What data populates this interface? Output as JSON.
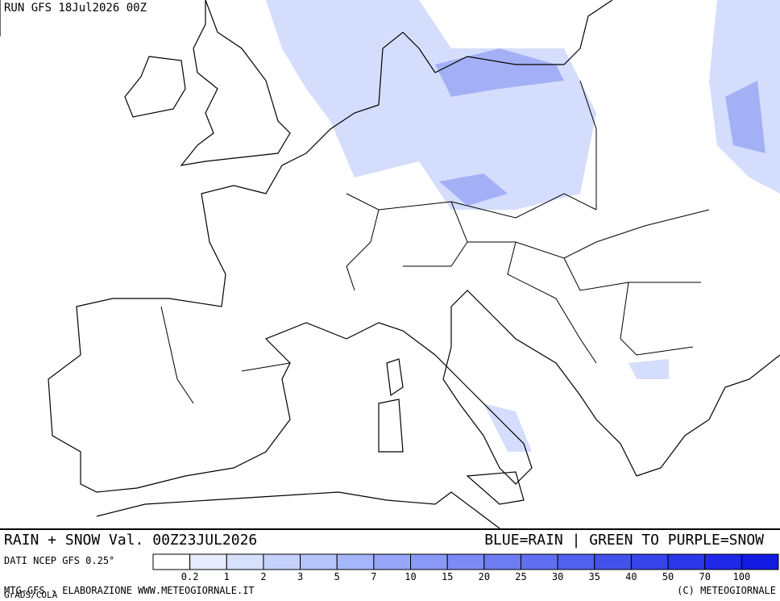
{
  "header": {
    "run": "RUN GFS 18Jul2026 00Z"
  },
  "footer": {
    "title": "RAIN + SNOW Val. 00Z23JUL2026",
    "key": "BLUE=RAIN | GREEN TO PURPLE=SNOW",
    "source": "DATI NCEP GFS 0.25°",
    "credit": "MTG-GFS - ELABORAZIONE WWW.METEOGIORNALE.IT",
    "copyright": "(C) METEOGIORNALE",
    "grads": "GrADS/COLA"
  },
  "legend": {
    "ticks": [
      0.2,
      1,
      2,
      3,
      5,
      7,
      10,
      15,
      20,
      25,
      30,
      35,
      40,
      50,
      70,
      100
    ],
    "colors": [
      "#ffffff",
      "#e6ecfc",
      "#d6e0fc",
      "#c6d2fc",
      "#b6c4fc",
      "#a6b6fa",
      "#98a6f8",
      "#8a98f6",
      "#7c8af4",
      "#6e7cf2",
      "#606ef0",
      "#5260ee",
      "#4452ec",
      "#3644ea",
      "#2a36e8",
      "#1e28e6",
      "#121ae4"
    ]
  }
}
